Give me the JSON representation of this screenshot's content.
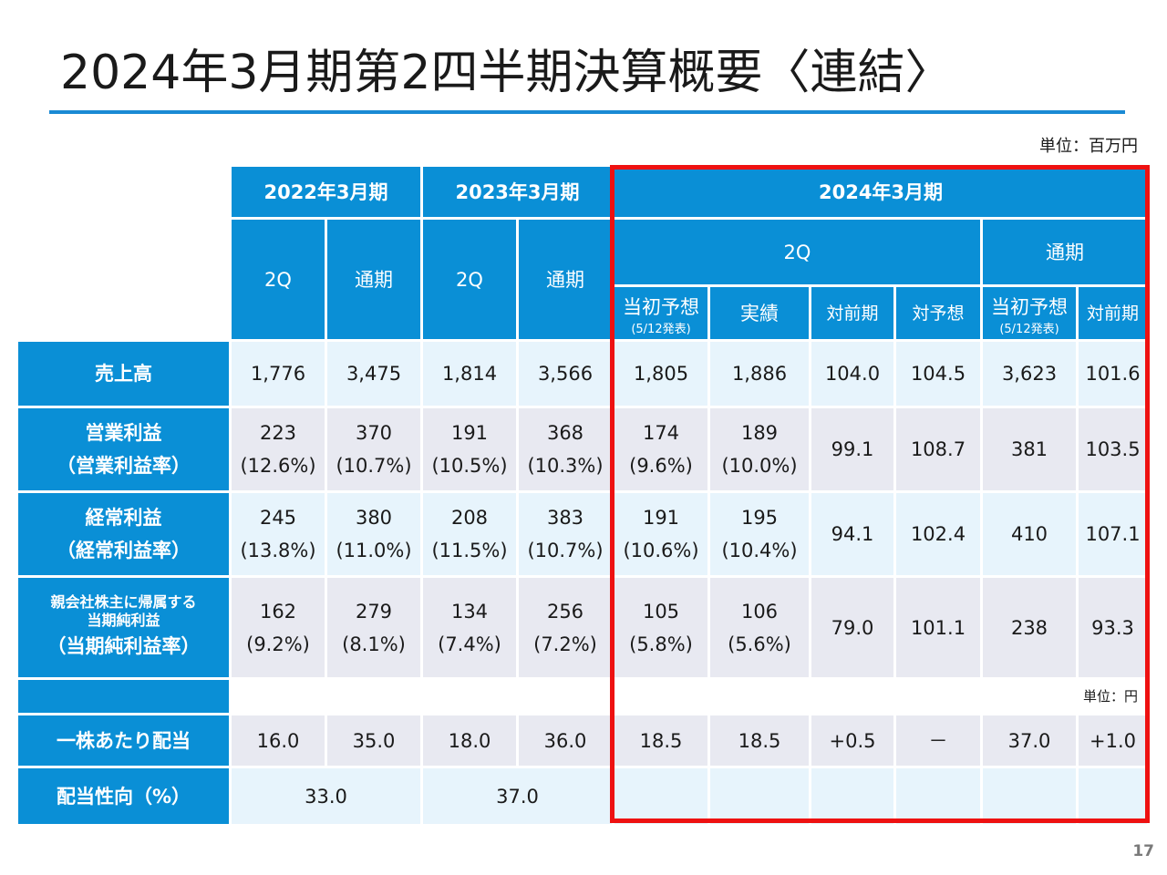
{
  "title": "2024年3月期第2四半期決算概要〈連結〉",
  "unit_top": "単位：百万円",
  "unit_dividend": "単位：円",
  "page_number": "17",
  "colors": {
    "header_blue": "#0a8fd6",
    "title_rule": "#1a8ad4",
    "highlight_border": "#ee1111",
    "cell_light_blue": "#e7f4fc",
    "cell_light_gray": "#e8e9f1"
  },
  "header": {
    "fy2022": "2022年3月期",
    "fy2023": "2023年3月期",
    "fy2024": "2024年3月期",
    "q2": "2Q",
    "full_year": "通期",
    "initial_forecast": "当初予想",
    "initial_forecast_date": "(5/12発表)",
    "actual": "実績",
    "yoy": "対前期",
    "vs_forecast": "対予想"
  },
  "rows": {
    "sales": {
      "label": "売上高",
      "values": [
        "1,776",
        "3,475",
        "1,814",
        "3,566",
        "1,805",
        "1,886",
        "104.0",
        "104.5",
        "3,623",
        "101.6"
      ]
    },
    "operating": {
      "label1": "営業利益",
      "label2": "（営業利益率）",
      "values": [
        "223",
        "370",
        "191",
        "368",
        "174",
        "189",
        "99.1",
        "108.7",
        "381",
        "103.5"
      ],
      "rates": [
        "(12.6%)",
        "(10.7%)",
        "(10.5%)",
        "(10.3%)",
        "(9.6%)",
        "(10.0%)"
      ]
    },
    "ordinary": {
      "label1": "経常利益",
      "label2": "（経常利益率）",
      "values": [
        "245",
        "380",
        "208",
        "383",
        "191",
        "195",
        "94.1",
        "102.4",
        "410",
        "107.1"
      ],
      "rates": [
        "(13.8%)",
        "(11.0%)",
        "(11.5%)",
        "(10.7%)",
        "(10.6%)",
        "(10.4%)"
      ]
    },
    "net": {
      "label1": "親会社株主に帰属する",
      "label2": "当期純利益",
      "label3": "（当期純利益率）",
      "values": [
        "162",
        "279",
        "134",
        "256",
        "105",
        "106",
        "79.0",
        "101.1",
        "238",
        "93.3"
      ],
      "rates": [
        "(9.2%)",
        "(8.1%)",
        "(7.4%)",
        "(7.2%)",
        "(5.8%)",
        "(5.6%)"
      ]
    },
    "dividend": {
      "label": "一株あたり配当",
      "values": [
        "16.0",
        "35.0",
        "18.0",
        "36.0",
        "18.5",
        "18.5",
        "+0.5",
        "－",
        "37.0",
        "+1.0"
      ]
    },
    "payout": {
      "label": "配当性向（%）",
      "values": [
        "33.0",
        "37.0"
      ]
    }
  }
}
